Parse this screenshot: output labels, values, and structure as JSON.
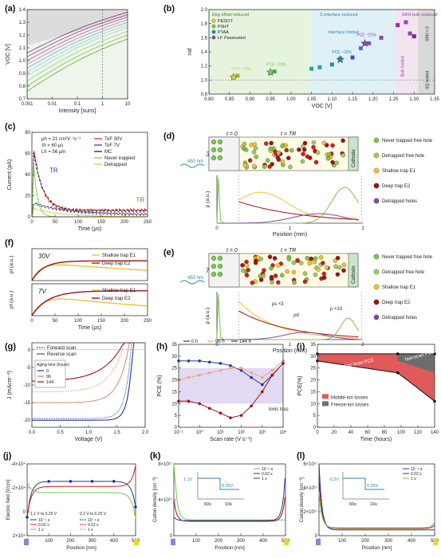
{
  "panels": {
    "a": {
      "label": "(a)"
    },
    "b": {
      "label": "(b)"
    },
    "c": {
      "label": "(c)"
    },
    "d": {
      "label": "(d)"
    },
    "e": {
      "label": "(e)"
    },
    "f": {
      "label": "(f)"
    },
    "g": {
      "label": "(g)"
    },
    "h": {
      "label": "(h)"
    },
    "i": {
      "label": "(i)"
    },
    "j": {
      "label": "(j)"
    },
    "k": {
      "label": "(k)"
    },
    "l": {
      "label": "(l)"
    }
  },
  "colors": {
    "grid": "#d9d9d9",
    "axis": "#333333",
    "green": "#7ac943",
    "red": "#d7191c",
    "yellow": "#f2c12e",
    "darkred": "#a50f15",
    "navy": "#1f3a93",
    "purple": "#8e44ad",
    "grey": "#9e9e9e"
  },
  "chart_data": [
    {
      "id": "a",
      "type": "line",
      "xlabel": "Intensity [suns]",
      "ylabel": "VOC [V]",
      "xscale": "log",
      "xlim": [
        0.001,
        10
      ],
      "ylim": [
        0.7,
        1.4
      ],
      "xticks": [
        "0.001",
        "0.01",
        "0.1",
        "1",
        "10"
      ],
      "yticks": [
        "0.7",
        "0.8",
        "0.9",
        "1.0",
        "1.1",
        "1.2",
        "1.3",
        "1.4"
      ],
      "series": [
        {
          "values": [
            [
              0.001,
              1.06
            ],
            [
              10,
              1.38
            ]
          ],
          "color": "#7b2d7e"
        },
        {
          "values": [
            [
              0.001,
              1.03
            ],
            [
              10,
              1.36
            ]
          ],
          "color": "#9b3b8e"
        },
        {
          "values": [
            [
              0.001,
              1.0
            ],
            [
              10,
              1.34
            ]
          ],
          "color": "#b64f9f"
        },
        {
          "values": [
            [
              0.001,
              0.97
            ],
            [
              10,
              1.32
            ]
          ],
          "color": "#d374b6"
        },
        {
          "values": [
            [
              0.001,
              0.94
            ],
            [
              10,
              1.3
            ]
          ],
          "color": "#6fb5d8"
        },
        {
          "values": [
            [
              0.001,
              0.91
            ],
            [
              10,
              1.28
            ]
          ],
          "color": "#8fd0e4"
        },
        {
          "values": [
            [
              0.001,
              0.88
            ],
            [
              10,
              1.26
            ]
          ],
          "color": "#a3d9c6"
        },
        {
          "values": [
            [
              0.001,
              0.84
            ],
            [
              10,
              1.23
            ]
          ],
          "color": "#98cf7b"
        },
        {
          "values": [
            [
              0.001,
              0.8
            ],
            [
              10,
              1.2
            ]
          ],
          "color": "#7ec25c"
        },
        {
          "values": [
            [
              0.001,
              0.76
            ],
            [
              10,
              1.17
            ]
          ],
          "color": "#5fa83e"
        }
      ]
    },
    {
      "id": "b",
      "type": "scatter",
      "xlabel": "VOC [V]",
      "ylabel": "nid",
      "xlim": [
        0.8,
        1.35
      ],
      "ylim": [
        0.8,
        2.0
      ],
      "xticks": [
        "0.80",
        "0.85",
        "0.90",
        "0.95",
        "1.00",
        "1.05",
        "1.10",
        "1.15",
        "1.20",
        "1.25",
        "1.30",
        "1.35"
      ],
      "yticks": [
        "0.8",
        "1.0",
        "1.2",
        "1.4",
        "1.6",
        "1.8",
        "2.0"
      ],
      "regions": [
        "Ebg offset reduced",
        "S interface reduced",
        "SRH bulk reduced",
        "Interface limited",
        "Bulk limited",
        "SQ limited",
        "SRH < 0"
      ],
      "legend": [
        "PEDOT",
        "P3HT",
        "PTAA",
        "LF Passivated"
      ],
      "annotations": [
        "PCE ~18%",
        "PCE ~19%",
        "PCE ~20%",
        "PCE ~21%"
      ],
      "points": [
        [
          0.86,
          1.04
        ],
        [
          0.87,
          1.06
        ],
        [
          0.95,
          1.1
        ],
        [
          0.96,
          1.12
        ],
        [
          1.05,
          1.16
        ],
        [
          1.07,
          1.18
        ],
        [
          1.1,
          1.22
        ],
        [
          1.12,
          1.3
        ],
        [
          1.15,
          1.32
        ],
        [
          1.17,
          1.45
        ],
        [
          1.19,
          1.52
        ],
        [
          1.22,
          1.6
        ],
        [
          1.26,
          1.78
        ],
        [
          1.28,
          1.82
        ],
        [
          1.29,
          1.66
        ],
        [
          1.3,
          1.62
        ]
      ],
      "stars": [
        [
          0.86,
          1.04
        ],
        [
          0.95,
          1.11
        ],
        [
          1.12,
          1.29
        ],
        [
          1.18,
          1.52
        ]
      ]
    },
    {
      "id": "c",
      "type": "line",
      "xlabel": "Time (μs)",
      "ylabel": "Current (pA)",
      "xlim": [
        0,
        250
      ],
      "ylim": [
        0,
        80
      ],
      "xticks": [
        "0",
        "50",
        "100",
        "150",
        "200",
        "250"
      ],
      "yticks": [
        "0",
        "20",
        "40",
        "60",
        "80"
      ],
      "legend": [
        "ToF 30V",
        "ToF 7V",
        "MC",
        "Never trapped",
        "Detrapped"
      ],
      "params": [
        "μh = 21 cm²V⁻¹s⁻¹",
        "τh = 60 μs",
        "Lh = 56 μm"
      ],
      "marks": [
        "TR",
        "TR"
      ]
    },
    {
      "id": "d",
      "type": "line",
      "xlabel": "Position (mm)",
      "ylabel": "ρ (a.u.)",
      "xlim": [
        0,
        2
      ],
      "bias": "30V",
      "wavelength": "450 nm",
      "t0": "t = 0",
      "tR": "t = TR",
      "electrode": "Cathode",
      "legend": [
        "Never trapped free hole",
        "Detrapped free hole",
        "Shallow trap E1",
        "Deep trap E2",
        "Detrapped holes"
      ]
    },
    {
      "id": "e",
      "type": "line",
      "xlabel": "Position (mm)",
      "ylabel": "ρ (a.u.)",
      "xlim": [
        0,
        2
      ],
      "bias": "7V",
      "wavelength": "450 nm",
      "t0": "t = 0",
      "tR": "t = TR",
      "electrode": "Cathode",
      "annotations": [
        "ρs ×3",
        "ρd",
        "ρ ×10"
      ],
      "legend": [
        "Never trapped free hole",
        "Detrapped free hole",
        "Shallow trap E1",
        "Deep trap E2",
        "Detrapped holes"
      ]
    },
    {
      "id": "f",
      "type": "line",
      "xlabel": "Time (μs)",
      "ylabel": "ρt (a.u.)",
      "xlim": [
        0,
        250
      ],
      "xticks": [
        "0",
        "50",
        "100",
        "150",
        "200",
        "250"
      ],
      "subpanels": [
        "30V",
        "7V"
      ],
      "legend": [
        "Shallow trap E1",
        "Deep trap E2"
      ]
    },
    {
      "id": "g",
      "type": "line",
      "xlabel": "Voltage (V)",
      "ylabel": "J (mAcm⁻²)",
      "xlim": [
        0,
        2
      ],
      "ylim": [
        -22,
        2
      ],
      "xticks": [
        "0.0",
        "0.5",
        "1.0",
        "1.5",
        "2.0"
      ],
      "yticks": [
        "0",
        "-5",
        "-10",
        "-15",
        "-20"
      ],
      "legend": [
        "Forward scan",
        "Reverse scan"
      ],
      "aging_title": "Aging time (hours)",
      "aging": [
        "0",
        "96",
        "144"
      ]
    },
    {
      "id": "h",
      "type": "line",
      "xlabel": "Scan rate (V s⁻¹)",
      "ylabel": "PCE (%)",
      "xscale": "log",
      "xlim": [
        0.1,
        10000
      ],
      "ylim": [
        0,
        35
      ],
      "xticks": [
        "10⁻¹",
        "10⁰",
        "10¹",
        "10²",
        "10³",
        "10⁴"
      ],
      "yticks": [
        "0",
        "5",
        "10",
        "15",
        "20",
        "25",
        "30",
        "35"
      ],
      "legend": [
        "0 h",
        "96 h",
        "144 h"
      ],
      "annotation": "Ionic loss"
    },
    {
      "id": "i",
      "type": "area",
      "xlabel": "Time (hours)",
      "ylabel": "PCE(%)",
      "xlim": [
        0,
        140
      ],
      "ylim": [
        0,
        35
      ],
      "xticks": [
        "0",
        "20",
        "40",
        "60",
        "80",
        "100",
        "120",
        "140"
      ],
      "yticks": [
        "0",
        "5",
        "10",
        "15",
        "20",
        "25",
        "30",
        "35"
      ],
      "series": [
        {
          "name": "fast-scan PCE",
          "values": [
            [
              0,
              31
            ],
            [
              96,
              31
            ],
            [
              140,
              31
            ]
          ]
        },
        {
          "name": "slow-scan PCE",
          "values": [
            [
              0,
              28
            ],
            [
              96,
              23
            ],
            [
              140,
              11
            ]
          ]
        }
      ],
      "legend": [
        "Mobile-ion losses",
        "Freeze-ion losses"
      ]
    },
    {
      "id": "j",
      "type": "line",
      "xlabel": "Position [nm]",
      "ylabel": "Electric field [V/cm]",
      "xlim": [
        0,
        500
      ],
      "xticks": [
        "0",
        "100",
        "200",
        "300",
        "400",
        "500"
      ],
      "yticks": [
        "2×10⁴",
        "0",
        "-2×10⁴",
        "-4×10⁴"
      ],
      "legend_headers": [
        "1.1 V to 0.25 V",
        "0.2 V to 0.25 V"
      ],
      "legend": [
        "10⁻⁴ s",
        "0.02 s",
        "1 s"
      ]
    },
    {
      "id": "k",
      "type": "line",
      "xlabel": "Position [nm]",
      "ylabel": "Cation density [cm⁻³]",
      "xlim": [
        0,
        500
      ],
      "xticks": [
        "0",
        "100",
        "200",
        "300",
        "400",
        "500"
      ],
      "yticks": [
        "0",
        "4×10¹⁷",
        "8×10¹⁷"
      ],
      "legend": [
        "10⁻⁴ s",
        "0.02 s",
        "1 s"
      ],
      "inset": {
        "v1": "1.1V",
        "v2": "0.25V",
        "t1": "60s",
        "t2": "10s"
      }
    },
    {
      "id": "l",
      "type": "line",
      "xlabel": "Position [nm]",
      "ylabel": "Cation density [cm⁻³]",
      "xlim": [
        0,
        500
      ],
      "xticks": [
        "0",
        "100",
        "200",
        "300",
        "400",
        "500"
      ],
      "yticks": [
        "0",
        "2×10¹⁷",
        "4×10¹⁷",
        "6×10¹⁷"
      ],
      "legend": [
        "10⁻⁴ s",
        "0.02 s",
        "1 s"
      ],
      "inset": {
        "v1": "-0.2V",
        "v2": "0.25V",
        "t1": "60s",
        "t2": "10s"
      }
    }
  ]
}
